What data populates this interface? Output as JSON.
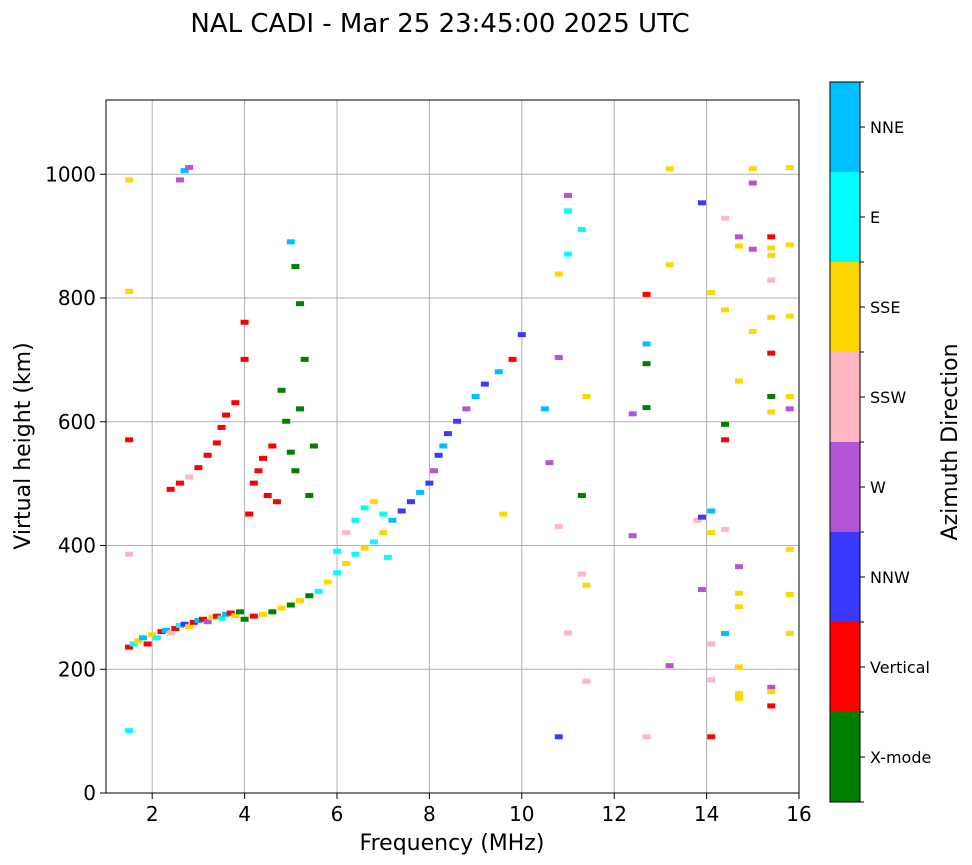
{
  "chart_data": {
    "type": "scatter",
    "title": "NAL CADI - Mar 25 23:45:00 2025 UTC",
    "xlabel": "Frequency (MHz)",
    "ylabel": "Virtual height (km)",
    "xlim": [
      1,
      16
    ],
    "ylim": [
      0,
      1120
    ],
    "xticks": [
      2,
      4,
      6,
      8,
      10,
      12,
      14,
      16
    ],
    "yticks": [
      0,
      200,
      400,
      600,
      800,
      1000
    ],
    "grid": true,
    "colorbar": {
      "label": "Azimuth Direction",
      "categories": [
        {
          "name": "X-mode",
          "color": "#008000"
        },
        {
          "name": "Vertical",
          "color": "#ff0000"
        },
        {
          "name": "NNW",
          "color": "#3a3aff"
        },
        {
          "name": "W",
          "color": "#b554d6"
        },
        {
          "name": "SSW",
          "color": "#ffb6c1"
        },
        {
          "name": "SSE",
          "color": "#ffd700"
        },
        {
          "name": "E",
          "color": "#00ffff"
        },
        {
          "name": "NNE",
          "color": "#00bfff"
        }
      ]
    },
    "points": [
      [
        1.5,
        235,
        "Vertical"
      ],
      [
        1.6,
        240,
        "E"
      ],
      [
        1.7,
        245,
        "SSE"
      ],
      [
        1.8,
        250,
        "NNE"
      ],
      [
        1.9,
        240,
        "Vertical"
      ],
      [
        2.0,
        255,
        "SSE"
      ],
      [
        2.1,
        250,
        "E"
      ],
      [
        2.2,
        260,
        "Vertical"
      ],
      [
        2.3,
        262,
        "NNE"
      ],
      [
        2.4,
        258,
        "SSW"
      ],
      [
        2.5,
        265,
        "Vertical"
      ],
      [
        2.6,
        270,
        "E"
      ],
      [
        2.7,
        272,
        "NNW"
      ],
      [
        2.8,
        268,
        "SSE"
      ],
      [
        2.9,
        275,
        "Vertical"
      ],
      [
        3.0,
        278,
        "NNE"
      ],
      [
        3.1,
        280,
        "Vertical"
      ],
      [
        3.2,
        276,
        "W"
      ],
      [
        3.3,
        283,
        "SSE"
      ],
      [
        3.4,
        285,
        "Vertical"
      ],
      [
        3.5,
        282,
        "E"
      ],
      [
        3.6,
        288,
        "NNE"
      ],
      [
        3.7,
        290,
        "Vertical"
      ],
      [
        3.8,
        286,
        "SSE"
      ],
      [
        3.9,
        292,
        "X-mode"
      ],
      [
        4.0,
        280,
        "X-mode"
      ],
      [
        4.2,
        285,
        "Vertical"
      ],
      [
        4.4,
        288,
        "SSE"
      ],
      [
        4.6,
        292,
        "X-mode"
      ],
      [
        4.8,
        298,
        "SSE"
      ],
      [
        5.0,
        303,
        "X-mode"
      ],
      [
        5.2,
        310,
        "SSE"
      ],
      [
        5.4,
        318,
        "X-mode"
      ],
      [
        5.6,
        325,
        "E"
      ],
      [
        5.8,
        340,
        "SSE"
      ],
      [
        6.0,
        355,
        "E"
      ],
      [
        6.2,
        370,
        "SSE"
      ],
      [
        6.4,
        385,
        "E"
      ],
      [
        6.6,
        395,
        "SSE"
      ],
      [
        6.8,
        405,
        "E"
      ],
      [
        7.0,
        420,
        "SSE"
      ],
      [
        7.1,
        380,
        "E"
      ],
      [
        7.2,
        440,
        "NNE"
      ],
      [
        7.4,
        455,
        "NNW"
      ],
      [
        7.6,
        470,
        "NNW"
      ],
      [
        7.8,
        485,
        "NNE"
      ],
      [
        8.0,
        500,
        "NNW"
      ],
      [
        8.1,
        520,
        "W"
      ],
      [
        8.2,
        545,
        "NNW"
      ],
      [
        8.3,
        560,
        "NNE"
      ],
      [
        8.4,
        580,
        "NNW"
      ],
      [
        8.6,
        600,
        "NNW"
      ],
      [
        8.8,
        620,
        "W"
      ],
      [
        9.0,
        640,
        "NNE"
      ],
      [
        9.2,
        660,
        "NNW"
      ],
      [
        9.5,
        680,
        "NNE"
      ],
      [
        9.8,
        700,
        "Vertical"
      ],
      [
        10.0,
        740,
        "NNW"
      ],
      [
        2.4,
        490,
        "Vertical"
      ],
      [
        2.6,
        500,
        "Vertical"
      ],
      [
        2.8,
        510,
        "SSW"
      ],
      [
        3.0,
        525,
        "Vertical"
      ],
      [
        3.2,
        545,
        "Vertical"
      ],
      [
        3.4,
        565,
        "Vertical"
      ],
      [
        3.5,
        590,
        "Vertical"
      ],
      [
        3.6,
        610,
        "Vertical"
      ],
      [
        3.8,
        630,
        "Vertical"
      ],
      [
        4.0,
        700,
        "Vertical"
      ],
      [
        4.0,
        760,
        "Vertical"
      ],
      [
        4.1,
        450,
        "Vertical"
      ],
      [
        4.2,
        500,
        "Vertical"
      ],
      [
        4.3,
        520,
        "Vertical"
      ],
      [
        4.4,
        540,
        "Vertical"
      ],
      [
        4.5,
        480,
        "Vertical"
      ],
      [
        4.6,
        560,
        "Vertical"
      ],
      [
        4.7,
        470,
        "Vertical"
      ],
      [
        4.8,
        650,
        "X-mode"
      ],
      [
        4.9,
        600,
        "X-mode"
      ],
      [
        5.0,
        550,
        "X-mode"
      ],
      [
        5.1,
        520,
        "X-mode"
      ],
      [
        5.2,
        620,
        "X-mode"
      ],
      [
        5.3,
        700,
        "X-mode"
      ],
      [
        5.4,
        480,
        "X-mode"
      ],
      [
        5.5,
        560,
        "X-mode"
      ],
      [
        5.2,
        790,
        "X-mode"
      ],
      [
        5.1,
        850,
        "X-mode"
      ],
      [
        5.0,
        890,
        "NNE"
      ],
      [
        6.0,
        390,
        "E"
      ],
      [
        6.2,
        420,
        "SSW"
      ],
      [
        6.4,
        440,
        "E"
      ],
      [
        6.6,
        460,
        "E"
      ],
      [
        6.8,
        470,
        "SSE"
      ],
      [
        7.0,
        450,
        "E"
      ],
      [
        1.5,
        100,
        "E"
      ],
      [
        1.5,
        570,
        "Vertical"
      ],
      [
        1.5,
        810,
        "SSE"
      ],
      [
        1.5,
        990,
        "SSE"
      ],
      [
        1.5,
        385,
        "SSW"
      ],
      [
        2.6,
        990,
        "W"
      ],
      [
        2.7,
        1005,
        "NNE"
      ],
      [
        2.8,
        1010,
        "W"
      ],
      [
        11.0,
        965,
        "W"
      ],
      [
        11.0,
        940,
        "E"
      ],
      [
        11.0,
        870,
        "E"
      ],
      [
        11.3,
        910,
        "E"
      ],
      [
        10.8,
        838,
        "SSE"
      ],
      [
        10.8,
        703,
        "W"
      ],
      [
        10.6,
        533,
        "W"
      ],
      [
        10.8,
        430,
        "SSW"
      ],
      [
        11.0,
        258,
        "SSW"
      ],
      [
        11.3,
        353,
        "SSW"
      ],
      [
        11.4,
        335,
        "SSE"
      ],
      [
        11.3,
        480,
        "X-mode"
      ],
      [
        11.4,
        640,
        "SSE"
      ],
      [
        10.5,
        620,
        "NNE"
      ],
      [
        9.6,
        450,
        "SSE"
      ],
      [
        10.8,
        90,
        "NNW"
      ],
      [
        11.4,
        180,
        "SSW"
      ],
      [
        12.4,
        415,
        "W"
      ],
      [
        12.4,
        612,
        "W"
      ],
      [
        12.7,
        622,
        "X-mode"
      ],
      [
        12.7,
        693,
        "X-mode"
      ],
      [
        12.7,
        725,
        "NNE"
      ],
      [
        12.7,
        805,
        "Vertical"
      ],
      [
        12.7,
        90,
        "SSW"
      ],
      [
        13.2,
        205,
        "W"
      ],
      [
        13.2,
        853,
        "SSE"
      ],
      [
        13.2,
        1008,
        "SSE"
      ],
      [
        13.8,
        440,
        "SSW"
      ],
      [
        13.9,
        328,
        "W"
      ],
      [
        13.9,
        445,
        "NNW"
      ],
      [
        13.9,
        953,
        "NNW"
      ],
      [
        14.1,
        808,
        "SSE"
      ],
      [
        14.1,
        420,
        "SSE"
      ],
      [
        14.1,
        240,
        "SSW"
      ],
      [
        14.1,
        90,
        "Vertical"
      ],
      [
        14.1,
        182,
        "SSW"
      ],
      [
        14.1,
        455,
        "NNE"
      ],
      [
        14.4,
        257,
        "NNE"
      ],
      [
        14.4,
        425,
        "SSW"
      ],
      [
        14.4,
        570,
        "Vertical"
      ],
      [
        14.4,
        595,
        "X-mode"
      ],
      [
        14.4,
        780,
        "SSE"
      ],
      [
        14.4,
        928,
        "SSW"
      ],
      [
        14.7,
        365,
        "W"
      ],
      [
        14.7,
        322,
        "SSE"
      ],
      [
        14.7,
        300,
        "SSE"
      ],
      [
        14.7,
        203,
        "SSE"
      ],
      [
        14.7,
        160,
        "SSE"
      ],
      [
        14.7,
        152,
        "SSE"
      ],
      [
        14.7,
        665,
        "SSE"
      ],
      [
        14.7,
        883,
        "SSE"
      ],
      [
        14.7,
        898,
        "W"
      ],
      [
        15.0,
        745,
        "SSE"
      ],
      [
        15.0,
        878,
        "W"
      ],
      [
        15.0,
        985,
        "W"
      ],
      [
        15.0,
        1008,
        "SSE"
      ],
      [
        15.4,
        898,
        "Vertical"
      ],
      [
        15.4,
        880,
        "SSE"
      ],
      [
        15.4,
        868,
        "SSE"
      ],
      [
        15.4,
        828,
        "SSW"
      ],
      [
        15.4,
        768,
        "SSE"
      ],
      [
        15.4,
        710,
        "Vertical"
      ],
      [
        15.4,
        640,
        "X-mode"
      ],
      [
        15.4,
        615,
        "SSE"
      ],
      [
        15.4,
        170,
        "W"
      ],
      [
        15.4,
        163,
        "SSE"
      ],
      [
        15.4,
        140,
        "Vertical"
      ],
      [
        15.8,
        1010,
        "SSE"
      ],
      [
        15.8,
        885,
        "SSE"
      ],
      [
        15.8,
        770,
        "SSE"
      ],
      [
        15.8,
        640,
        "SSE"
      ],
      [
        15.8,
        620,
        "W"
      ],
      [
        15.8,
        393,
        "SSE"
      ],
      [
        15.8,
        320,
        "SSE"
      ],
      [
        15.8,
        257,
        "SSE"
      ]
    ]
  }
}
